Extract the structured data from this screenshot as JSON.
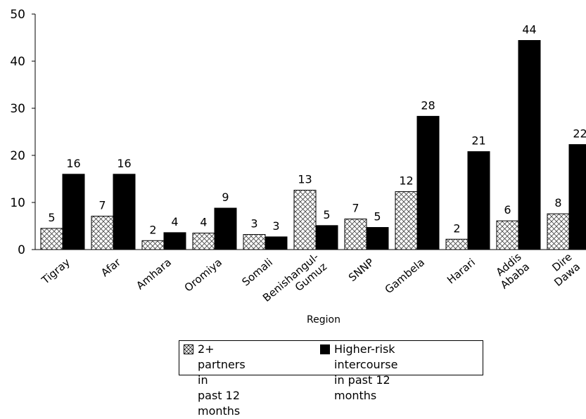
{
  "chart_data": {
    "type": "bar",
    "xlabel": "Region",
    "ylabel": "",
    "ylim": [
      0,
      50
    ],
    "yticks": [
      0,
      10,
      20,
      30,
      40,
      50
    ],
    "grid": false,
    "legend_position": "bottom",
    "categories": [
      "Tigray",
      "Afar",
      "Amhara",
      "Oromiya",
      "Somali",
      "Benishangul-\nGumuz",
      "SNNP",
      "Gambela",
      "Harari",
      "Addis\nAbaba",
      "Dire\nDawa"
    ],
    "series": [
      {
        "name": "2+ partners in\npast 12 months",
        "pattern": "crosshatch",
        "color": "#ffffff",
        "values": [
          5,
          7,
          2,
          4,
          3,
          13,
          7,
          12,
          2,
          6,
          8
        ]
      },
      {
        "name": "Higher-risk intercourse\nin past 12 months",
        "pattern": "solid",
        "color": "#000000",
        "values": [
          16,
          16,
          4,
          9,
          3,
          5,
          5,
          28,
          21,
          44,
          22
        ]
      }
    ],
    "bar_heights": [
      [
        4.5,
        7.1,
        1.9,
        3.5,
        3.2,
        12.6,
        6.5,
        12.3,
        2.2,
        6.1,
        7.6
      ],
      [
        16.0,
        16.0,
        3.6,
        8.8,
        2.7,
        5.1,
        4.7,
        28.3,
        20.8,
        44.4,
        22.3
      ]
    ]
  }
}
